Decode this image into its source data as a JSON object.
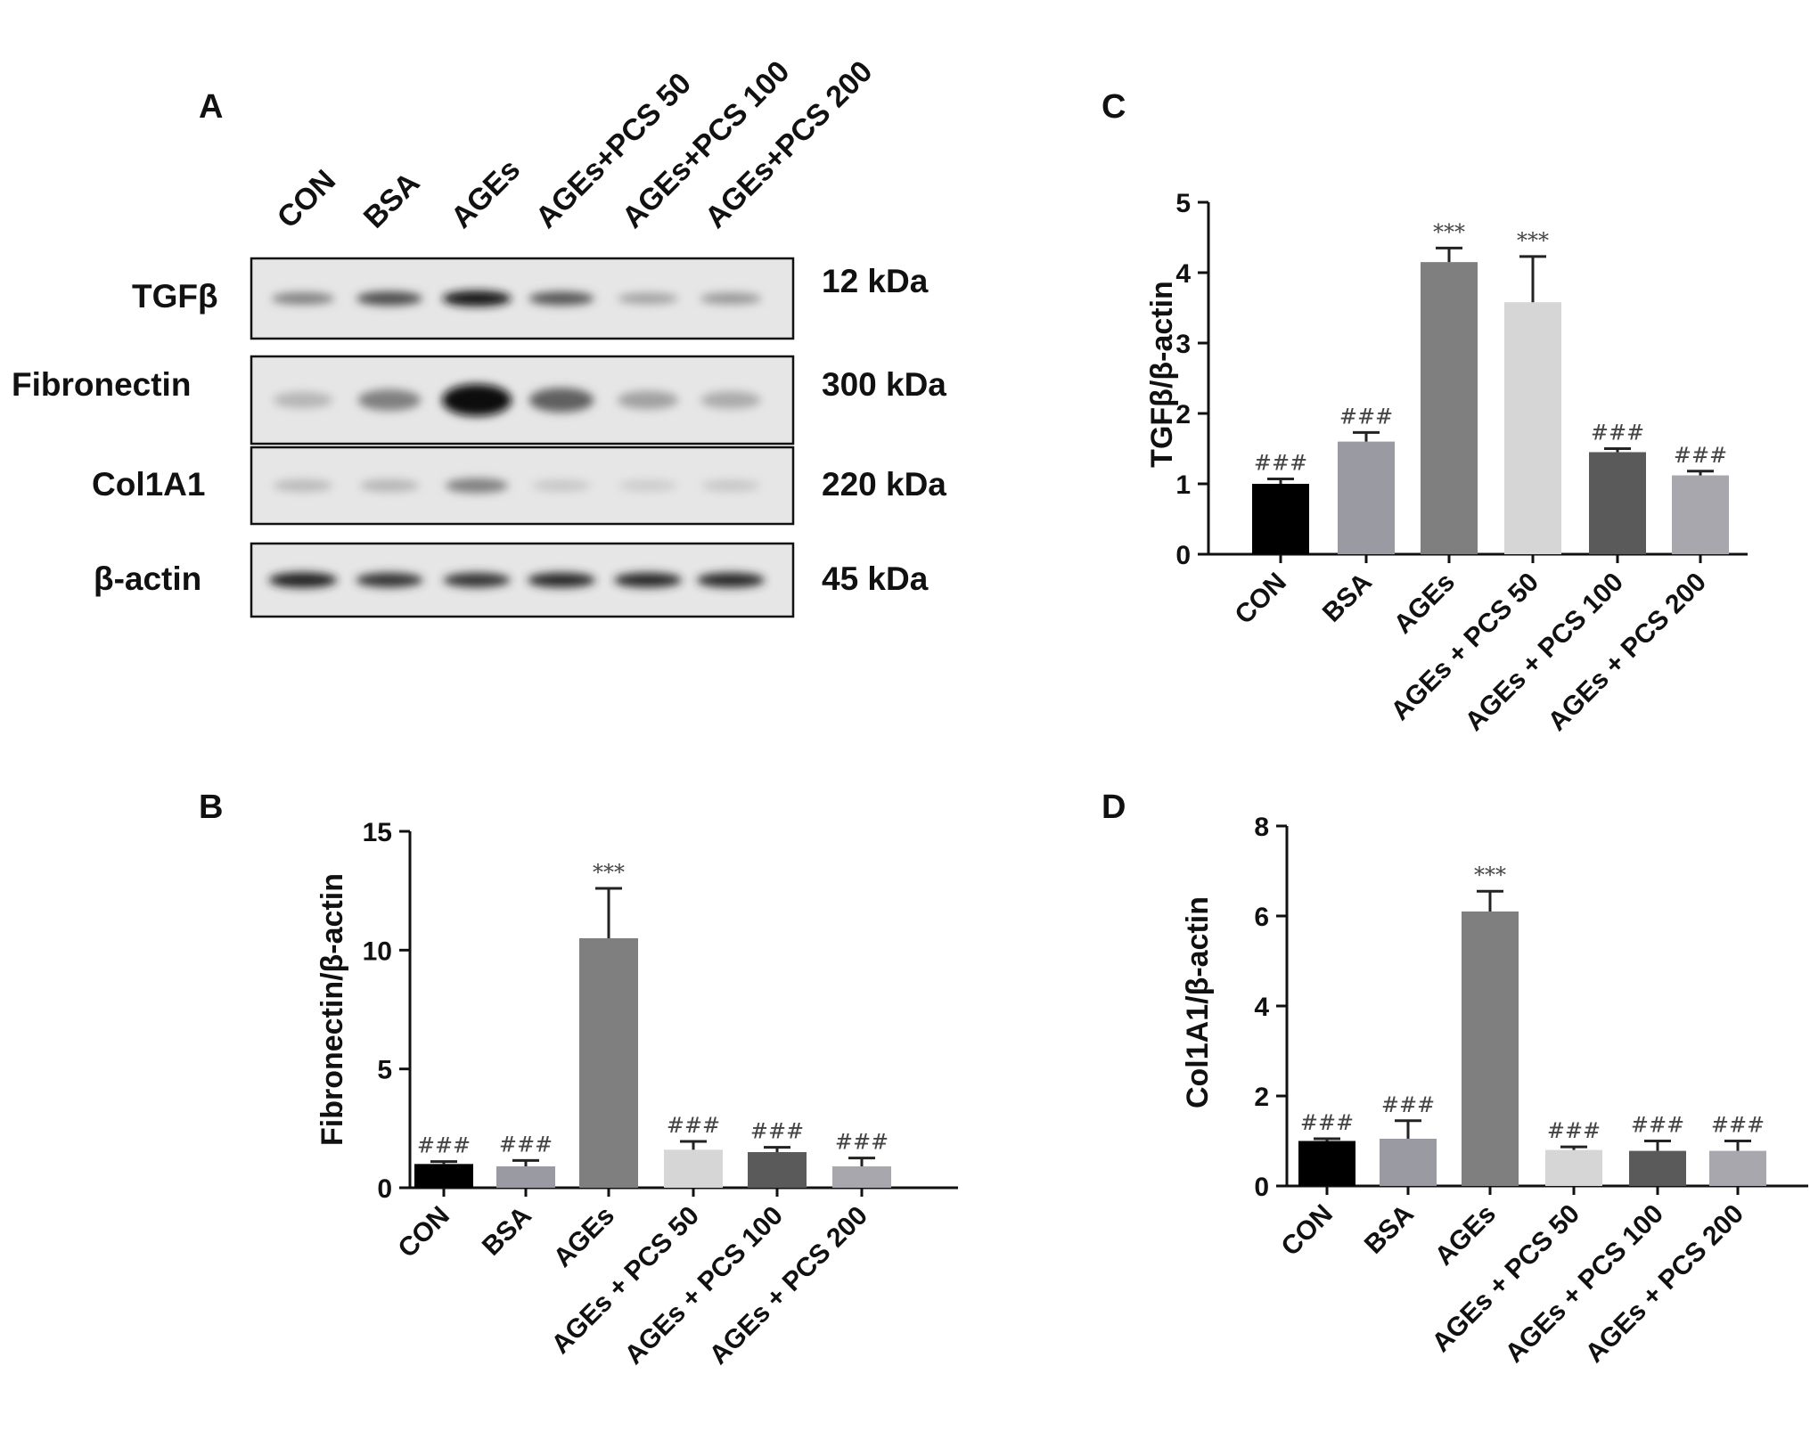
{
  "figure": {
    "panel_a": {
      "letter": "A",
      "lanes": [
        "CON",
        "BSA",
        "AGEs",
        "AGEs+PCS 50",
        "AGEs+PCS 100",
        "AGEs+PCS 200"
      ],
      "blots": [
        {
          "label": "TGFβ",
          "mw": "12 kDa",
          "intensity": [
            0.45,
            0.7,
            0.95,
            0.65,
            0.3,
            0.35
          ]
        },
        {
          "label": "Fibronectin",
          "mw": "300 kDa",
          "intensity": [
            0.2,
            0.45,
            1.0,
            0.6,
            0.3,
            0.25
          ]
        },
        {
          "label": "Col1A1",
          "mw": "220 kDa",
          "intensity": [
            0.18,
            0.2,
            0.45,
            0.12,
            0.1,
            0.12
          ]
        },
        {
          "label": "β-actin",
          "mw": "45 kDa",
          "intensity": [
            0.9,
            0.8,
            0.8,
            0.85,
            0.85,
            0.85
          ]
        }
      ]
    }
  },
  "chart_data": [
    {
      "panel": "B",
      "type": "bar",
      "ylabel": "Fibronectin/β-actin",
      "categories": [
        "CON",
        "BSA",
        "AGEs",
        "AGEs + PCS 50",
        "AGEs + PCS 100",
        "AGEs + PCS 200"
      ],
      "values": [
        1.0,
        0.9,
        10.5,
        1.6,
        1.5,
        0.9
      ],
      "errors": [
        0.1,
        0.25,
        2.1,
        0.35,
        0.2,
        0.35
      ],
      "annotations": [
        "###",
        "###",
        "***",
        "###",
        "###",
        "###"
      ],
      "ylim": [
        0,
        15
      ],
      "yticks": [
        0,
        5,
        10,
        15
      ],
      "ytick_labels": [
        "0",
        "5",
        "10",
        "15"
      ],
      "colors": [
        "#000000",
        "#9a9aa2",
        "#7f7f7f",
        "#d6d6d6",
        "#5a5a5a",
        "#a7a7ad"
      ]
    },
    {
      "panel": "C",
      "type": "bar",
      "ylabel": "TGFβ/β-actin",
      "categories": [
        "CON",
        "BSA",
        "AGEs",
        "AGEs + PCS 50",
        "AGEs + PCS 100",
        "AGEs + PCS 200"
      ],
      "values": [
        1.0,
        1.6,
        4.15,
        3.58,
        1.45,
        1.12
      ],
      "errors": [
        0.07,
        0.13,
        0.2,
        0.65,
        0.05,
        0.06
      ],
      "annotations": [
        "###",
        "###",
        "***",
        "***",
        "###",
        "###"
      ],
      "ylim": [
        0,
        5
      ],
      "yticks": [
        0,
        1,
        2,
        3,
        4,
        5
      ],
      "ytick_labels": [
        "0",
        "1",
        "2",
        "3",
        "4",
        "5"
      ],
      "colors": [
        "#000000",
        "#9a9aa2",
        "#7f7f7f",
        "#d6d6d6",
        "#5a5a5a",
        "#a7a7ad"
      ]
    },
    {
      "panel": "D",
      "type": "bar",
      "ylabel": "Col1A1/β-actin",
      "categories": [
        "CON",
        "BSA",
        "AGEs",
        "AGEs + PCS 50",
        "AGEs + PCS 100",
        "AGEs + PCS 200"
      ],
      "values": [
        1.0,
        1.05,
        6.1,
        0.8,
        0.78,
        0.78
      ],
      "errors": [
        0.05,
        0.4,
        0.45,
        0.07,
        0.22,
        0.22
      ],
      "annotations": [
        "###",
        "###",
        "***",
        "###",
        "###",
        "###"
      ],
      "ylim": [
        0,
        8
      ],
      "yticks": [
        0,
        2,
        4,
        6,
        8
      ],
      "ytick_labels": [
        "0",
        "2",
        "4",
        "6",
        "8"
      ],
      "colors": [
        "#000000",
        "#9a9aa2",
        "#7f7f7f",
        "#d6d6d6",
        "#5a5a5a",
        "#a7a7ad"
      ]
    }
  ]
}
